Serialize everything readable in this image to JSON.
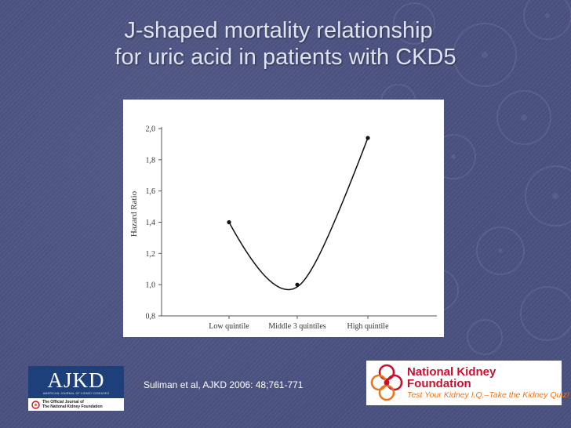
{
  "slide": {
    "title_line1": "J-shaped mortality relationship",
    "title_line2": "for uric acid in patients with CKD5",
    "citation": "Suliman et al, AJKD 2006: 48;761-771",
    "accent_color": "#4a5180"
  },
  "logos": {
    "ajkd": {
      "name": "AJKD",
      "subtitle": "AMERICAN JOURNAL OF KIDNEY DISEASES",
      "footer_line1": "The Official Journal of",
      "footer_line2": "The National Kidney Foundation"
    },
    "nkf": {
      "name_line1": "National Kidney",
      "name_line2": "Foundation",
      "tagline": "Test Your Kidney I.Q.–Take the Kidney Quiz!",
      "colors": {
        "name": "#c8102e",
        "tagline": "#e87722"
      }
    }
  },
  "chart_data": {
    "type": "line",
    "title": "",
    "xlabel": "",
    "ylabel": "Hazard Ratio",
    "categories": [
      "Low quintile",
      "Middle 3 quintiles",
      "High quintile"
    ],
    "values": [
      1.4,
      1.0,
      1.94
    ],
    "ylim": [
      0.8,
      2.0
    ],
    "yticks": [
      "0,8",
      "1,0",
      "1,2",
      "1,4",
      "1,6",
      "1,8",
      "2,0"
    ],
    "grid": false,
    "line_color": "#111111"
  }
}
